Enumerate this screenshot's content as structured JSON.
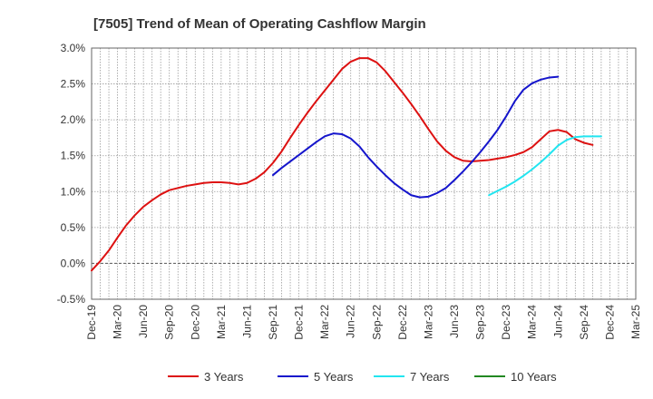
{
  "chart_data": {
    "type": "line",
    "title": "[7505]  Trend of Mean of Operating Cashflow Margin",
    "xlabel": "",
    "ylabel": "",
    "x_ticks": [
      "Dec-19",
      "Mar-20",
      "Jun-20",
      "Sep-20",
      "Dec-20",
      "Mar-21",
      "Jun-21",
      "Sep-21",
      "Dec-21",
      "Mar-22",
      "Jun-22",
      "Sep-22",
      "Dec-22",
      "Mar-23",
      "Jun-23",
      "Sep-23",
      "Dec-23",
      "Mar-24",
      "Jun-24",
      "Sep-24",
      "Dec-24",
      "Mar-25"
    ],
    "y_ticks": [
      "-0.5%",
      "0.0%",
      "0.5%",
      "1.0%",
      "1.5%",
      "2.0%",
      "2.5%",
      "3.0%"
    ],
    "ylim": [
      -0.5,
      3.0
    ],
    "grid": true,
    "legend_position": "bottom",
    "series": [
      {
        "name": "3 Years",
        "color": "#dd1111",
        "start": 0,
        "values": [
          -0.1,
          0.03,
          0.18,
          0.36,
          0.53,
          0.67,
          0.79,
          0.88,
          0.96,
          1.02,
          1.05,
          1.08,
          1.1,
          1.12,
          1.13,
          1.13,
          1.12,
          1.1,
          1.12,
          1.18,
          1.27,
          1.4,
          1.56,
          1.75,
          1.93,
          2.1,
          2.26,
          2.41,
          2.56,
          2.71,
          2.81,
          2.86,
          2.86,
          2.8,
          2.68,
          2.53,
          2.38,
          2.22,
          2.05,
          1.87,
          1.7,
          1.57,
          1.48,
          1.43,
          1.42,
          1.43,
          1.44,
          1.46,
          1.48,
          1.51,
          1.55,
          1.62,
          1.73,
          1.84,
          1.86,
          1.83,
          1.73,
          1.68,
          1.65
        ]
      },
      {
        "name": "5 Years",
        "color": "#1515cc",
        "start": 21,
        "values": [
          1.23,
          1.33,
          1.42,
          1.51,
          1.6,
          1.69,
          1.77,
          1.81,
          1.8,
          1.74,
          1.63,
          1.48,
          1.35,
          1.23,
          1.12,
          1.03,
          0.95,
          0.92,
          0.93,
          0.98,
          1.05,
          1.16,
          1.28,
          1.41,
          1.55,
          1.7,
          1.86,
          2.05,
          2.26,
          2.42,
          2.51,
          2.56,
          2.59,
          2.6
        ]
      },
      {
        "name": "7 Years",
        "color": "#22e5f0",
        "start": 46,
        "values": [
          0.95,
          1.01,
          1.07,
          1.14,
          1.22,
          1.31,
          1.41,
          1.52,
          1.64,
          1.72,
          1.76,
          1.77,
          1.77,
          1.77
        ]
      },
      {
        "name": "10 Years",
        "color": "#228822",
        "start": 0,
        "values": []
      }
    ]
  }
}
